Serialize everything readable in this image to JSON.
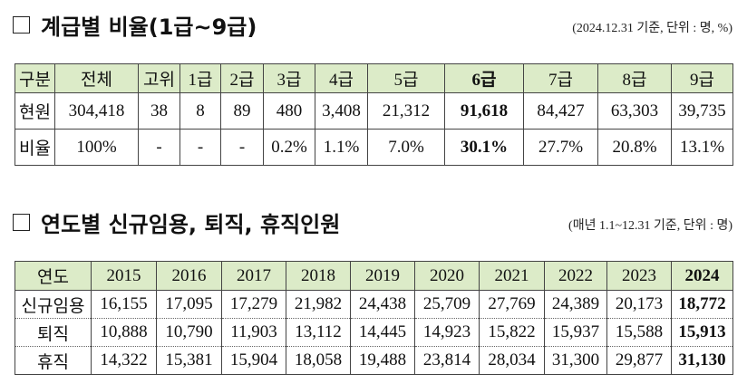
{
  "section1": {
    "title": "계급별 비율(1급~9급)",
    "note": "(2024.12.31 기준, 단위 : 명,  %)",
    "headers": [
      "구분",
      "전체",
      "고위",
      "1급",
      "2급",
      "3급",
      "4급",
      "5급",
      "6급",
      "7급",
      "8급",
      "9급"
    ],
    "rows": [
      [
        "현원",
        "304,418",
        "38",
        "8",
        "89",
        "480",
        "3,408",
        "21,312",
        "91,618",
        "84,427",
        "63,303",
        "39,735"
      ],
      [
        "비율",
        "100%",
        "-",
        "-",
        "-",
        "0.2%",
        "1.1%",
        "7.0%",
        "30.1%",
        "27.7%",
        "20.8%",
        "13.1%"
      ]
    ]
  },
  "section2": {
    "title": "연도별 신규임용, 퇴직, 휴직인원",
    "note": "(매년 1.1~12.31 기준, 단위 : 명)",
    "headers": [
      "연도",
      "2015",
      "2016",
      "2017",
      "2018",
      "2019",
      "2020",
      "2021",
      "2022",
      "2023",
      "2024"
    ],
    "rows": [
      [
        "신규임용",
        "16,155",
        "17,095",
        "17,279",
        "21,982",
        "24,438",
        "25,709",
        "27,769",
        "24,389",
        "20,173",
        "18,772"
      ],
      [
        "퇴직",
        "10,888",
        "10,790",
        "11,903",
        "13,112",
        "14,445",
        "14,923",
        "15,822",
        "15,937",
        "15,588",
        "15,913"
      ],
      [
        "휴직",
        "14,322",
        "15,381",
        "15,904",
        "18,058",
        "19,488",
        "23,814",
        "28,034",
        "31,300",
        "29,877",
        "31,130"
      ]
    ]
  },
  "colors": {
    "header_bg": "#dcebc8"
  }
}
